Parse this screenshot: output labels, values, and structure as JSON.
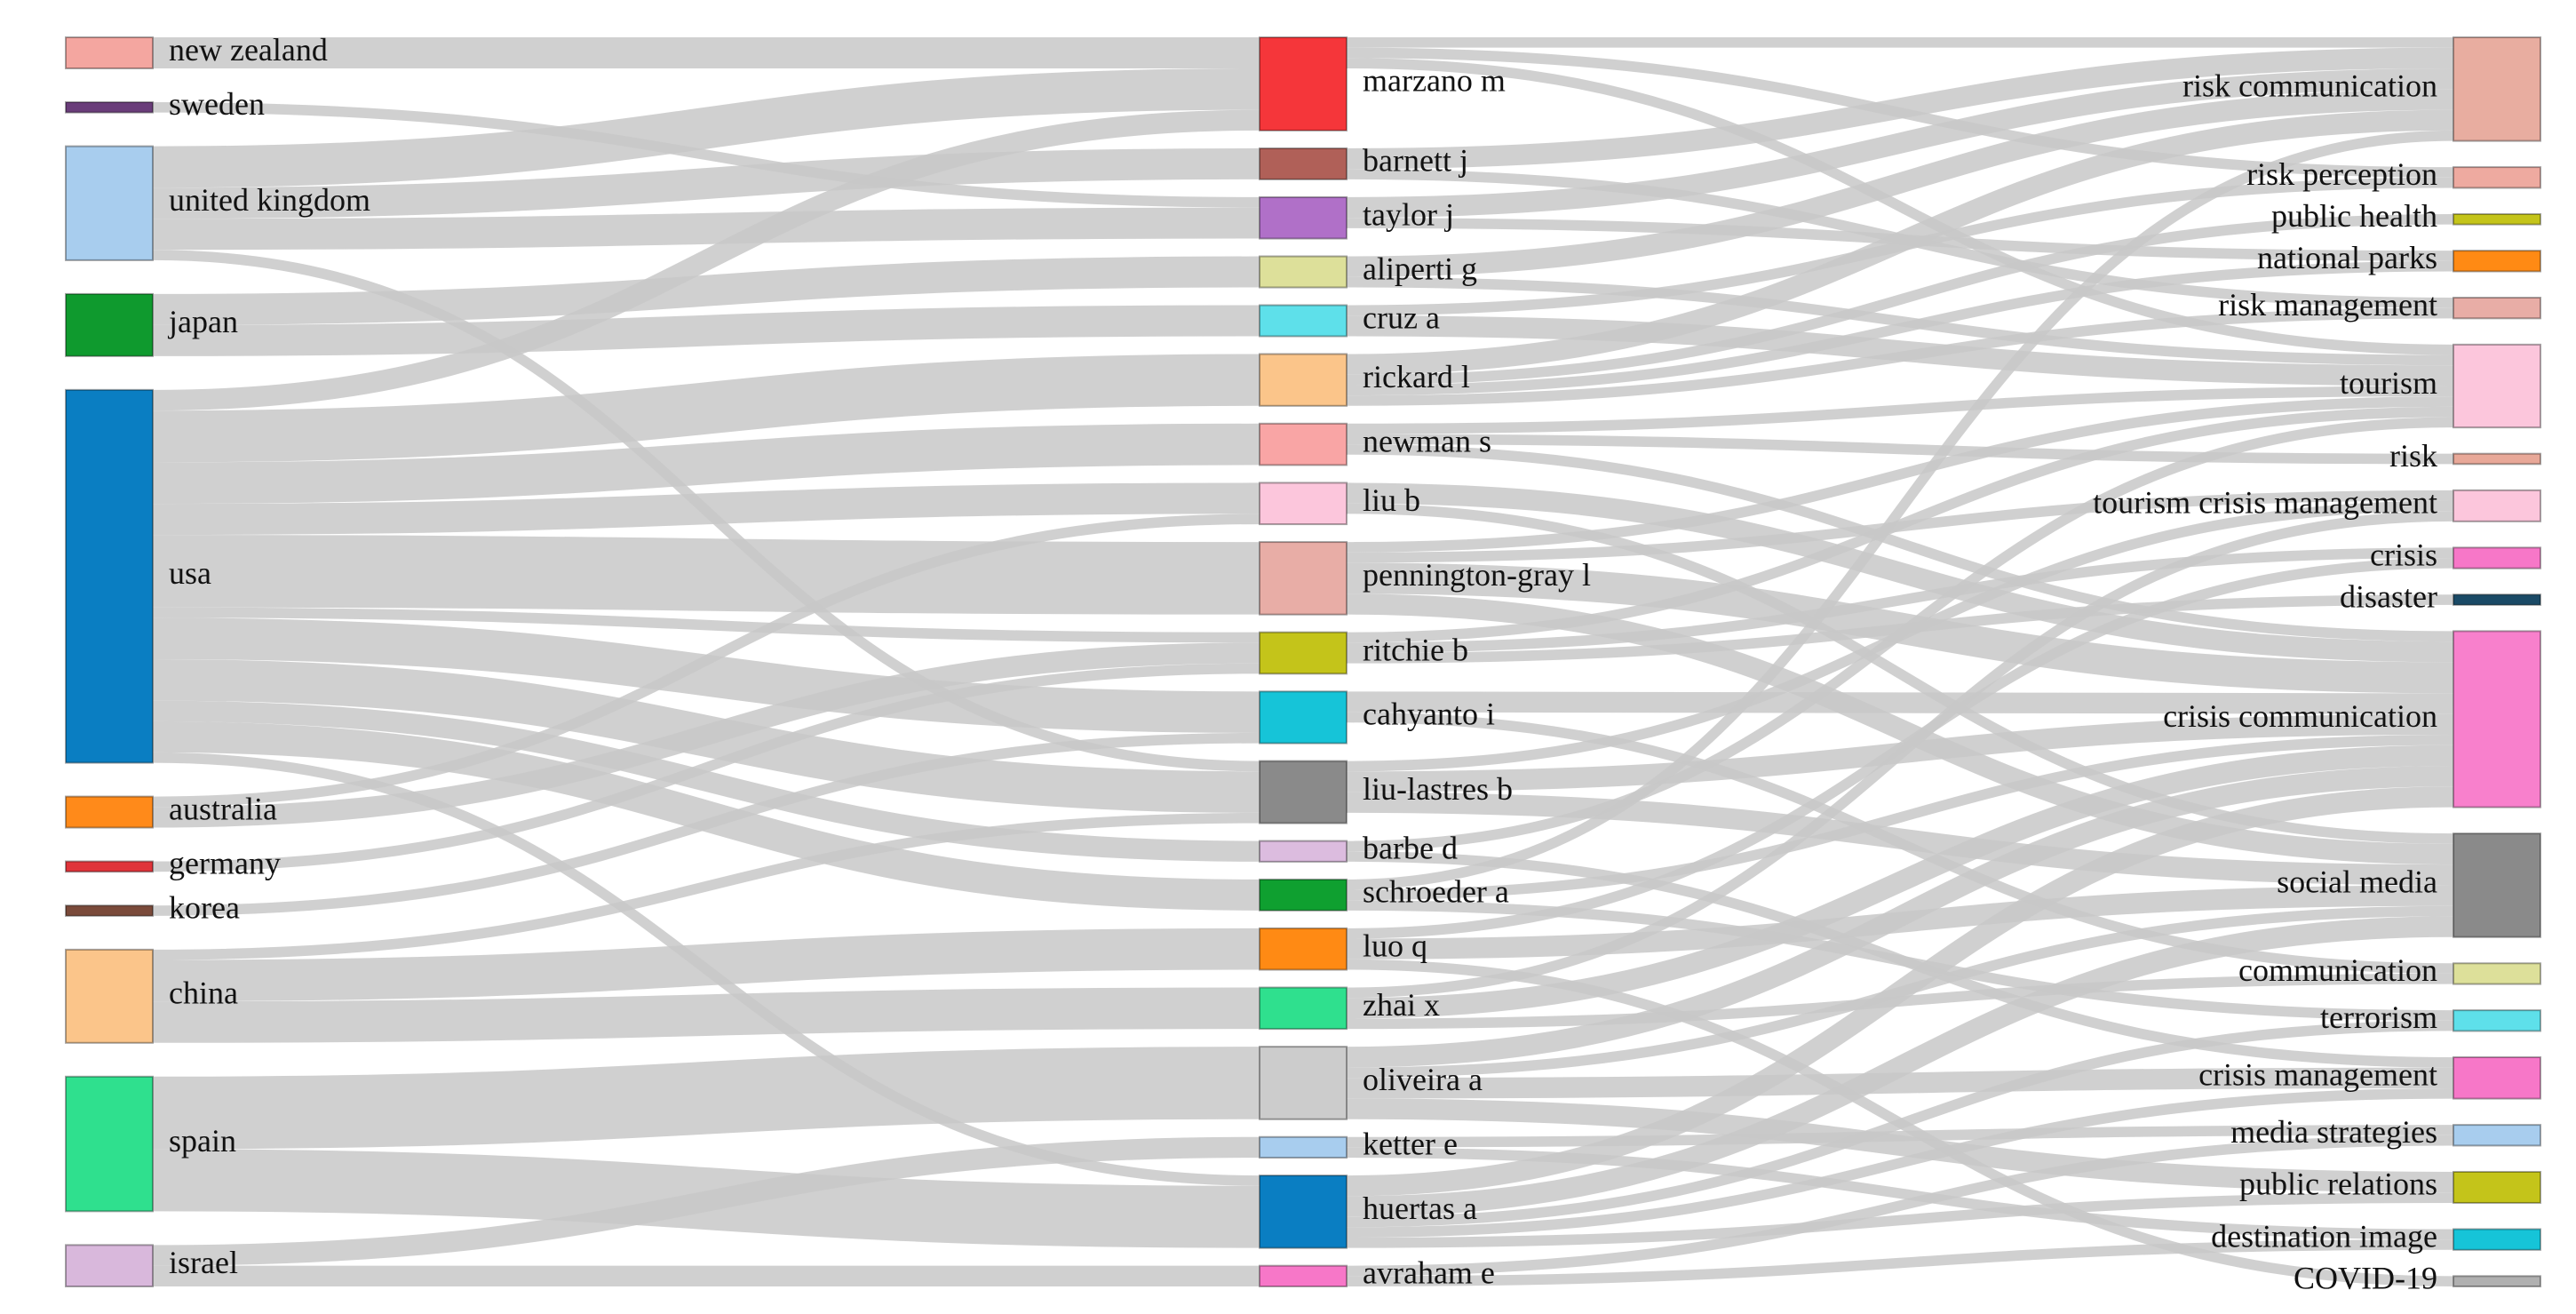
{
  "diagram": {
    "type": "sankey",
    "columns": [
      {
        "name": "countries",
        "nodes": [
          {
            "id": "new_zealand",
            "label": "new zealand",
            "color": "#f4a6a0"
          },
          {
            "id": "sweden",
            "label": "sweden",
            "color": "#6a3d7a"
          },
          {
            "id": "united_kingdom",
            "label": "united kingdom",
            "color": "#a8cdee"
          },
          {
            "id": "japan",
            "label": "japan",
            "color": "#0f9a2e"
          },
          {
            "id": "usa",
            "label": "usa",
            "color": "#0a7ec2"
          },
          {
            "id": "australia",
            "label": "australia",
            "color": "#ff8a1a"
          },
          {
            "id": "germany",
            "label": "germany",
            "color": "#e0343a"
          },
          {
            "id": "korea",
            "label": "korea",
            "color": "#7a4a3a"
          },
          {
            "id": "china",
            "label": "china",
            "color": "#fbc58a"
          },
          {
            "id": "spain",
            "label": "spain",
            "color": "#2fe08e"
          },
          {
            "id": "israel",
            "label": "israel",
            "color": "#d9b8dc"
          }
        ]
      },
      {
        "name": "authors",
        "nodes": [
          {
            "id": "marzano_m",
            "label": "marzano m",
            "color": "#f5363a"
          },
          {
            "id": "barnett_j",
            "label": "barnett j",
            "color": "#b06058"
          },
          {
            "id": "taylor_j",
            "label": "taylor j",
            "color": "#b070c8"
          },
          {
            "id": "aliperti_g",
            "label": "aliperti g",
            "color": "#dde09a"
          },
          {
            "id": "cruz_a",
            "label": "cruz a",
            "color": "#5ee0ea"
          },
          {
            "id": "rickard_l",
            "label": "rickard l",
            "color": "#fbc58a"
          },
          {
            "id": "newman_s",
            "label": "newman s",
            "color": "#f9a5a5"
          },
          {
            "id": "liu_b",
            "label": "liu b",
            "color": "#fcc6dc"
          },
          {
            "id": "pennington_gray_l",
            "label": "pennington-gray l",
            "color": "#e8ada6"
          },
          {
            "id": "ritchie_b",
            "label": "ritchie b",
            "color": "#c4c41a"
          },
          {
            "id": "cahyanto_i",
            "label": "cahyanto i",
            "color": "#16c4d8"
          },
          {
            "id": "liu_lastres_b",
            "label": "liu-lastres b",
            "color": "#8a8a8a"
          },
          {
            "id": "barbe_d",
            "label": "barbe d",
            "color": "#dcbcdf"
          },
          {
            "id": "schroeder_a",
            "label": "schroeder a",
            "color": "#0fa030"
          },
          {
            "id": "luo_q",
            "label": "luo q",
            "color": "#ff8a14"
          },
          {
            "id": "zhai_x",
            "label": "zhai x",
            "color": "#2fe08e"
          },
          {
            "id": "oliveira_a",
            "label": "oliveira a",
            "color": "#cccccc"
          },
          {
            "id": "ketter_e",
            "label": "ketter e",
            "color": "#a8cdee"
          },
          {
            "id": "huertas_a",
            "label": "huertas a",
            "color": "#0a7ec2"
          },
          {
            "id": "avraham_e",
            "label": "avraham e",
            "color": "#f777c8"
          }
        ]
      },
      {
        "name": "keywords",
        "nodes": [
          {
            "id": "risk_communication",
            "label": "risk communication",
            "color": "#e8ada0"
          },
          {
            "id": "risk_perception",
            "label": "risk perception",
            "color": "#eeaaa0"
          },
          {
            "id": "public_health",
            "label": "public health",
            "color": "#c4c41a"
          },
          {
            "id": "national_parks",
            "label": "national parks",
            "color": "#ff8a14"
          },
          {
            "id": "risk_management",
            "label": "risk management",
            "color": "#e8ada6"
          },
          {
            "id": "tourism",
            "label": "tourism",
            "color": "#fcc6dc"
          },
          {
            "id": "risk",
            "label": "risk",
            "color": "#e8a898"
          },
          {
            "id": "tourism_crisis_management",
            "label": "tourism crisis management",
            "color": "#fcc6dc"
          },
          {
            "id": "crisis",
            "label": "crisis",
            "color": "#f777c8"
          },
          {
            "id": "disaster",
            "label": "disaster",
            "color": "#1a4a66"
          },
          {
            "id": "crisis_communication",
            "label": "crisis communication",
            "color": "#f880cc"
          },
          {
            "id": "social_media",
            "label": "social media",
            "color": "#8a8a8a"
          },
          {
            "id": "communication",
            "label": "communication",
            "color": "#dde09a"
          },
          {
            "id": "terrorism",
            "label": "terrorism",
            "color": "#5ee0ea"
          },
          {
            "id": "crisis_management",
            "label": "crisis management",
            "color": "#f777c8"
          },
          {
            "id": "media_strategies",
            "label": "media strategies",
            "color": "#a8cdee"
          },
          {
            "id": "public_relations",
            "label": "public relations",
            "color": "#c4c41a"
          },
          {
            "id": "destination_image",
            "label": "destination image",
            "color": "#16c4d8"
          },
          {
            "id": "covid_19",
            "label": "COVID-19",
            "color": "#b0b0b0"
          }
        ]
      }
    ],
    "links": [
      {
        "source": "new_zealand",
        "target": "marzano_m",
        "value": 3
      },
      {
        "source": "sweden",
        "target": "taylor_j",
        "value": 1
      },
      {
        "source": "united_kingdom",
        "target": "marzano_m",
        "value": 4
      },
      {
        "source": "united_kingdom",
        "target": "barnett_j",
        "value": 3
      },
      {
        "source": "united_kingdom",
        "target": "taylor_j",
        "value": 3
      },
      {
        "source": "united_kingdom",
        "target": "liu_lastres_b",
        "value": 1
      },
      {
        "source": "japan",
        "target": "aliperti_g",
        "value": 3
      },
      {
        "source": "japan",
        "target": "cruz_a",
        "value": 3
      },
      {
        "source": "usa",
        "target": "marzano_m",
        "value": 2
      },
      {
        "source": "usa",
        "target": "rickard_l",
        "value": 5
      },
      {
        "source": "usa",
        "target": "newman_s",
        "value": 4
      },
      {
        "source": "usa",
        "target": "liu_b",
        "value": 3
      },
      {
        "source": "usa",
        "target": "pennington_gray_l",
        "value": 7
      },
      {
        "source": "usa",
        "target": "ritchie_b",
        "value": 1
      },
      {
        "source": "usa",
        "target": "cahyanto_i",
        "value": 4
      },
      {
        "source": "usa",
        "target": "liu_lastres_b",
        "value": 4
      },
      {
        "source": "usa",
        "target": "barbe_d",
        "value": 2
      },
      {
        "source": "usa",
        "target": "schroeder_a",
        "value": 3
      },
      {
        "source": "usa",
        "target": "huertas_a",
        "value": 1
      },
      {
        "source": "australia",
        "target": "ritchie_b",
        "value": 2
      },
      {
        "source": "australia",
        "target": "liu_b",
        "value": 1
      },
      {
        "source": "germany",
        "target": "ritchie_b",
        "value": 1
      },
      {
        "source": "korea",
        "target": "cahyanto_i",
        "value": 1
      },
      {
        "source": "china",
        "target": "luo_q",
        "value": 4
      },
      {
        "source": "china",
        "target": "zhai_x",
        "value": 4
      },
      {
        "source": "china",
        "target": "liu_lastres_b",
        "value": 1
      },
      {
        "source": "spain",
        "target": "oliveira_a",
        "value": 7
      },
      {
        "source": "spain",
        "target": "huertas_a",
        "value": 6
      },
      {
        "source": "israel",
        "target": "ketter_e",
        "value": 2
      },
      {
        "source": "israel",
        "target": "avraham_e",
        "value": 2
      },
      {
        "source": "marzano_m",
        "target": "risk_communication",
        "value": 1
      },
      {
        "source": "marzano_m",
        "target": "tourism",
        "value": 1
      },
      {
        "source": "marzano_m",
        "target": "risk_perception",
        "value": 1
      },
      {
        "source": "barnett_j",
        "target": "risk_communication",
        "value": 2
      },
      {
        "source": "barnett_j",
        "target": "risk_management",
        "value": 1
      },
      {
        "source": "taylor_j",
        "target": "risk_communication",
        "value": 2
      },
      {
        "source": "taylor_j",
        "target": "national_parks",
        "value": 1
      },
      {
        "source": "aliperti_g",
        "target": "risk_communication",
        "value": 2
      },
      {
        "source": "aliperti_g",
        "target": "tourism",
        "value": 1
      },
      {
        "source": "cruz_a",
        "target": "risk_perception",
        "value": 1
      },
      {
        "source": "cruz_a",
        "target": "tourism",
        "value": 2
      },
      {
        "source": "rickard_l",
        "target": "risk_communication",
        "value": 2
      },
      {
        "source": "rickard_l",
        "target": "public_health",
        "value": 1
      },
      {
        "source": "rickard_l",
        "target": "national_parks",
        "value": 1
      },
      {
        "source": "rickard_l",
        "target": "risk_management",
        "value": 1
      },
      {
        "source": "newman_s",
        "target": "tourism",
        "value": 1
      },
      {
        "source": "newman_s",
        "target": "risk",
        "value": 1
      },
      {
        "source": "newman_s",
        "target": "crisis_communication",
        "value": 1
      },
      {
        "source": "liu_b",
        "target": "crisis_communication",
        "value": 2
      },
      {
        "source": "liu_b",
        "target": "social_media",
        "value": 1
      },
      {
        "source": "pennington_gray_l",
        "target": "crisis_communication",
        "value": 3
      },
      {
        "source": "pennington_gray_l",
        "target": "social_media",
        "value": 2
      },
      {
        "source": "pennington_gray_l",
        "target": "tourism_crisis_management",
        "value": 1
      },
      {
        "source": "pennington_gray_l",
        "target": "tourism",
        "value": 1
      },
      {
        "source": "ritchie_b",
        "target": "crisis",
        "value": 1
      },
      {
        "source": "ritchie_b",
        "target": "tourism",
        "value": 1
      },
      {
        "source": "ritchie_b",
        "target": "disaster",
        "value": 1
      },
      {
        "source": "cahyanto_i",
        "target": "crisis_communication",
        "value": 2
      },
      {
        "source": "cahyanto_i",
        "target": "communication",
        "value": 1
      },
      {
        "source": "liu_lastres_b",
        "target": "social_media",
        "value": 2
      },
      {
        "source": "liu_lastres_b",
        "target": "crisis_communication",
        "value": 2
      },
      {
        "source": "liu_lastres_b",
        "target": "tourism_crisis_management",
        "value": 1
      },
      {
        "source": "barbe_d",
        "target": "crisis_management",
        "value": 1
      },
      {
        "source": "barbe_d",
        "target": "tourism",
        "value": 1
      },
      {
        "source": "schroeder_a",
        "target": "terrorism",
        "value": 1
      },
      {
        "source": "schroeder_a",
        "target": "risk_communication",
        "value": 1
      },
      {
        "source": "schroeder_a",
        "target": "crisis_communication",
        "value": 1
      },
      {
        "source": "luo_q",
        "target": "social_media",
        "value": 2
      },
      {
        "source": "luo_q",
        "target": "crisis",
        "value": 1
      },
      {
        "source": "luo_q",
        "target": "covid_19",
        "value": 1
      },
      {
        "source": "zhai_x",
        "target": "crisis_communication",
        "value": 2
      },
      {
        "source": "zhai_x",
        "target": "tourism_crisis_management",
        "value": 1
      },
      {
        "source": "zhai_x",
        "target": "communication",
        "value": 1
      },
      {
        "source": "oliveira_a",
        "target": "crisis_communication",
        "value": 2
      },
      {
        "source": "oliveira_a",
        "target": "public_relations",
        "value": 2
      },
      {
        "source": "oliveira_a",
        "target": "crisis_management",
        "value": 2
      },
      {
        "source": "oliveira_a",
        "target": "social_media",
        "value": 1
      },
      {
        "source": "ketter_e",
        "target": "media_strategies",
        "value": 1
      },
      {
        "source": "ketter_e",
        "target": "destination_image",
        "value": 1
      },
      {
        "source": "huertas_a",
        "target": "social_media",
        "value": 2
      },
      {
        "source": "huertas_a",
        "target": "crisis_communication",
        "value": 2
      },
      {
        "source": "huertas_a",
        "target": "crisis_management",
        "value": 1
      },
      {
        "source": "huertas_a",
        "target": "public_relations",
        "value": 1
      },
      {
        "source": "huertas_a",
        "target": "terrorism",
        "value": 1
      },
      {
        "source": "avraham_e",
        "target": "media_strategies",
        "value": 1
      },
      {
        "source": "avraham_e",
        "target": "destination_image",
        "value": 1
      }
    ]
  }
}
